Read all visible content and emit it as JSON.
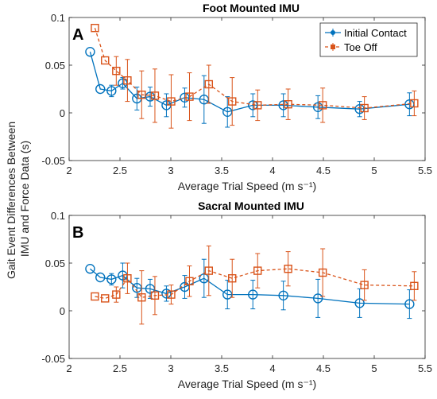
{
  "y_label_lines": [
    "Gait Event Differences Between",
    "IMU and Force Data (s)"
  ],
  "colors": {
    "initial_contact": "#0072BD",
    "toe_off": "#D95319"
  },
  "chart_data": [
    {
      "type": "line",
      "panel_letter": "A",
      "title": "Foot Mounted IMU",
      "xlabel": "Average Trial Speed (m s⁻¹)",
      "ylabel": "",
      "xlim": [
        2,
        5.5
      ],
      "ylim": [
        -0.05,
        0.1
      ],
      "xticks": [
        2,
        2.5,
        3,
        3.5,
        4,
        4.5,
        5,
        5.5
      ],
      "yticks": [
        -0.05,
        0,
        0.05,
        0.1
      ],
      "xtick_labels": [
        "2",
        "2.5",
        "3",
        "3.5",
        "4",
        "4.5",
        "5",
        "5.5"
      ],
      "ytick_labels": [
        "-0.05",
        "0",
        "0.05",
        "0.1"
      ],
      "legend_position": "top-right",
      "series": [
        {
          "name": "Initial Contact",
          "style": "solid-circle",
          "x": [
            2.23,
            2.33,
            2.44,
            2.55,
            2.69,
            2.82,
            2.98,
            3.16,
            3.35,
            3.58,
            3.83,
            4.13,
            4.47,
            4.88,
            5.37
          ],
          "y": [
            0.064,
            0.025,
            0.023,
            0.031,
            0.015,
            0.017,
            0.008,
            0.016,
            0.014,
            0.001,
            0.008,
            0.008,
            0.006,
            0.004,
            0.009
          ],
          "err": [
            0.0,
            0.0,
            0.006,
            0.006,
            0.012,
            0.01,
            0.012,
            0.01,
            0.025,
            0.016,
            0.012,
            0.012,
            0.012,
            0.008,
            0.012
          ]
        },
        {
          "name": "Toe Off",
          "style": "dashed-square",
          "x": [
            2.23,
            2.33,
            2.44,
            2.55,
            2.69,
            2.82,
            2.98,
            3.16,
            3.35,
            3.58,
            3.83,
            4.13,
            4.47,
            4.88,
            5.37
          ],
          "y": [
            0.089,
            0.055,
            0.044,
            0.034,
            0.019,
            0.018,
            0.012,
            0.017,
            0.03,
            0.012,
            0.008,
            0.009,
            0.008,
            0.005,
            0.01
          ],
          "err": [
            0.0,
            0.0,
            0.015,
            0.022,
            0.025,
            0.028,
            0.028,
            0.025,
            0.02,
            0.025,
            0.016,
            0.016,
            0.018,
            0.012,
            0.013
          ]
        }
      ]
    },
    {
      "type": "line",
      "panel_letter": "B",
      "title": "Sacral Mounted IMU",
      "xlabel": "Average Trial Speed (m s⁻¹)",
      "ylabel": "",
      "xlim": [
        2,
        5.5
      ],
      "ylim": [
        -0.05,
        0.1
      ],
      "xticks": [
        2,
        2.5,
        3,
        3.5,
        4,
        4.5,
        5,
        5.5
      ],
      "yticks": [
        -0.05,
        0,
        0.05,
        0.1
      ],
      "xtick_labels": [
        "2",
        "2.5",
        "3",
        "3.5",
        "4",
        "4.5",
        "5",
        "5.5"
      ],
      "ytick_labels": [
        "-0.05",
        "0",
        "0.05",
        "0.1"
      ],
      "legend_position": "none",
      "series": [
        {
          "name": "Initial Contact",
          "style": "solid-circle",
          "x": [
            2.23,
            2.33,
            2.44,
            2.55,
            2.69,
            2.82,
            2.98,
            3.16,
            3.35,
            3.58,
            3.83,
            4.13,
            4.47,
            4.88,
            5.37
          ],
          "y": [
            0.044,
            0.035,
            0.033,
            0.037,
            0.024,
            0.023,
            0.018,
            0.025,
            0.034,
            0.017,
            0.017,
            0.016,
            0.013,
            0.008,
            0.007
          ],
          "err": [
            0.0,
            0.0,
            0.006,
            0.013,
            0.01,
            0.01,
            0.008,
            0.012,
            0.02,
            0.015,
            0.015,
            0.015,
            0.02,
            0.015,
            0.015
          ]
        },
        {
          "name": "Toe Off",
          "style": "dashed-square",
          "x": [
            2.23,
            2.33,
            2.44,
            2.55,
            2.69,
            2.82,
            2.98,
            3.16,
            3.35,
            3.58,
            3.83,
            4.13,
            4.47,
            4.88,
            5.37
          ],
          "y": [
            0.015,
            0.013,
            0.017,
            0.034,
            0.014,
            0.016,
            0.017,
            0.031,
            0.042,
            0.034,
            0.042,
            0.044,
            0.04,
            0.027,
            0.026
          ],
          "err": [
            0.0,
            0.0,
            0.008,
            0.016,
            0.028,
            0.02,
            0.01,
            0.016,
            0.026,
            0.02,
            0.018,
            0.018,
            0.025,
            0.016,
            0.015
          ]
        }
      ]
    }
  ]
}
